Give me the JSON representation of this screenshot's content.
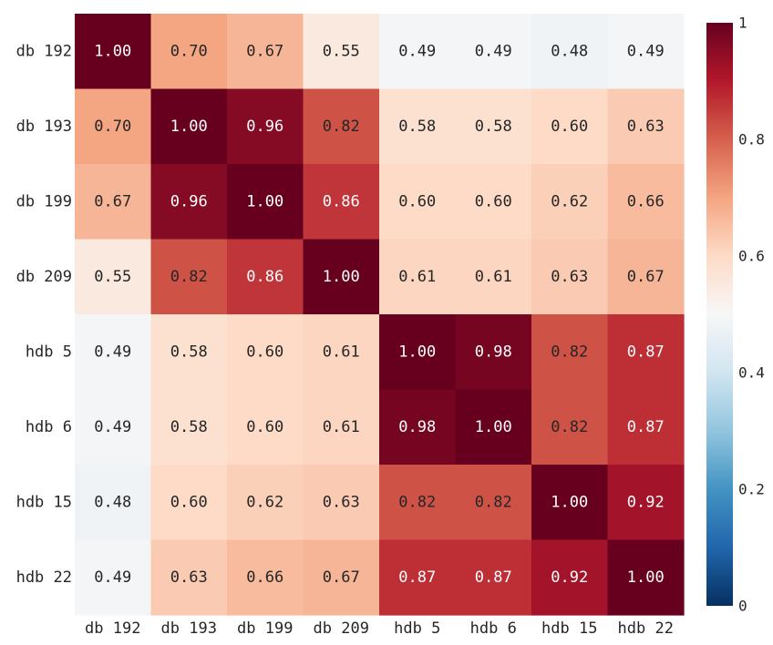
{
  "chart_data": {
    "type": "heatmap",
    "title": "",
    "xlabel": "",
    "ylabel": "",
    "rows": [
      "db 192",
      "db 193",
      "db 199",
      "db 209",
      "hdb 5",
      "hdb 6",
      "hdb 15",
      "hdb 22"
    ],
    "columns": [
      "db 192",
      "db 193",
      "db 199",
      "db 209",
      "hdb 5",
      "hdb 6",
      "hdb 15",
      "hdb 22"
    ],
    "values": [
      [
        1.0,
        0.7,
        0.67,
        0.55,
        0.49,
        0.49,
        0.48,
        0.49
      ],
      [
        0.7,
        1.0,
        0.96,
        0.82,
        0.58,
        0.58,
        0.6,
        0.63
      ],
      [
        0.67,
        0.96,
        1.0,
        0.86,
        0.6,
        0.6,
        0.62,
        0.66
      ],
      [
        0.55,
        0.82,
        0.86,
        1.0,
        0.61,
        0.61,
        0.63,
        0.67
      ],
      [
        0.49,
        0.58,
        0.6,
        0.61,
        1.0,
        0.98,
        0.82,
        0.87
      ],
      [
        0.49,
        0.58,
        0.6,
        0.61,
        0.98,
        1.0,
        0.82,
        0.87
      ],
      [
        0.48,
        0.6,
        0.62,
        0.63,
        0.82,
        0.82,
        1.0,
        0.92
      ],
      [
        0.49,
        0.63,
        0.66,
        0.67,
        0.87,
        0.87,
        0.92,
        1.0
      ]
    ],
    "value_format": "0.00",
    "colorbar": {
      "range": [
        0,
        1
      ],
      "ticks": [
        0,
        0.2,
        0.4,
        0.6,
        0.8,
        1
      ],
      "tick_labels": [
        "0",
        "0.2",
        "0.4",
        "0.6",
        "0.8",
        "1"
      ],
      "colormap": "RdBu_r"
    },
    "grid": false,
    "legend": "colorbar right"
  }
}
